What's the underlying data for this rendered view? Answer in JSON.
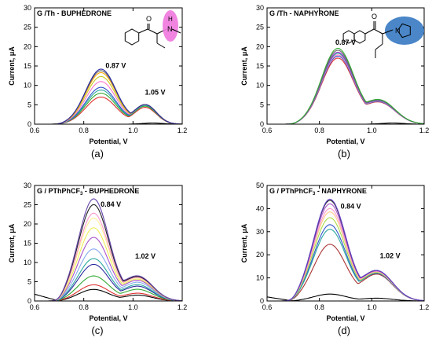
{
  "figure": {
    "panels": [
      {
        "letter": "(a)",
        "title": "G /Th - BUPHEDRONE",
        "title_main": "G /Th - BUPHEDRONE",
        "title_sub": "",
        "title_suffix": "",
        "peak1": "0.87 V",
        "peak2": "1.05 V",
        "xlabel": "Potential, V",
        "ylabel": "Current, μA",
        "molecule": "buphedrone",
        "molecule_labels": [
          "O",
          "H",
          "N"
        ]
      },
      {
        "letter": "(b)",
        "title": "G /Th - NAPHYRONE",
        "title_main": "G /Th - NAPHYRONE",
        "title_sub": "",
        "title_suffix": "",
        "peak1": "0.87 V",
        "peak2": "",
        "xlabel": "Potential, V",
        "ylabel": "Current, μA",
        "molecule": "naphyrone",
        "molecule_labels": [
          "O",
          "N"
        ]
      },
      {
        "letter": "(c)",
        "title": "G / PThPhCF3 - BUPHEDRONE",
        "title_main": "G / PThPhCF",
        "title_sub": "3",
        "title_suffix": " - BUPHEDRONE",
        "peak1": "0.84 V",
        "peak2": "1.02 V",
        "xlabel": "Potential, V",
        "ylabel": "Current, μA",
        "molecule": "",
        "molecule_labels": []
      },
      {
        "letter": "(d)",
        "title": "G / PThPhCF3 - NAPHYRONE",
        "title_main": "G / PThPhCF",
        "title_sub": "3",
        "title_suffix": " - NAPHYRONE",
        "peak1": "0.84 V",
        "peak2": "1.02 V",
        "xlabel": "Potential, V",
        "ylabel": "Current, μA",
        "molecule": "",
        "molecule_labels": []
      }
    ]
  },
  "chart_data": [
    {
      "type": "line",
      "xlabel": "Potential, V",
      "ylabel": "Current, μA",
      "xlim": [
        0.6,
        1.2
      ],
      "ylim": [
        0,
        30
      ],
      "xticks": [
        0.6,
        0.8,
        1.0,
        1.2
      ],
      "yticks": [
        0,
        5,
        10,
        15,
        20,
        25,
        30
      ],
      "grid": false,
      "legend": "none",
      "peaks": [
        {
          "x": 0.87,
          "label": "0.87 V"
        },
        {
          "x": 1.05,
          "label": "1.05 V"
        }
      ],
      "series": [
        {
          "color": "#000000",
          "peak": 0.3,
          "baseline": true
        },
        {
          "color": "#e03030",
          "peak": 7.0,
          "shoulder": 4.3
        },
        {
          "color": "#33aa33",
          "peak": 8.0,
          "shoulder": 4.6
        },
        {
          "color": "#2aa8a0",
          "peak": 8.8,
          "shoulder": 4.8
        },
        {
          "color": "#3355cc",
          "peak": 9.5,
          "shoulder": 5.0
        },
        {
          "color": "#ff77cc",
          "peak": 11.0,
          "shoulder": 5.0
        },
        {
          "color": "#cccc22",
          "peak": 12.3,
          "shoulder": 5.0
        },
        {
          "color": "#ffa500",
          "peak": 13.3,
          "shoulder": 5.0
        },
        {
          "color": "#666666",
          "peak": 13.8,
          "shoulder": 5.0
        },
        {
          "color": "#2a2aa0",
          "peak": 14.2,
          "shoulder": 5.0
        }
      ]
    },
    {
      "type": "line",
      "xlabel": "Potential, V",
      "ylabel": "Current, μA",
      "xlim": [
        0.6,
        1.2
      ],
      "ylim": [
        0,
        30
      ],
      "xticks": [
        0.6,
        0.8,
        1.0,
        1.2
      ],
      "yticks": [
        0,
        5,
        10,
        15,
        20,
        25,
        30
      ],
      "grid": false,
      "legend": "none",
      "peaks": [
        {
          "x": 0.87,
          "label": "0.87 V"
        }
      ],
      "series": [
        {
          "color": "#000000",
          "peak": 0.3,
          "baseline": true
        },
        {
          "color": "#e03030",
          "peak": 17.0,
          "shoulder": 5.5
        },
        {
          "color": "#3355cc",
          "peak": 17.5,
          "shoulder": 5.6
        },
        {
          "color": "#ff77cc",
          "peak": 17.8,
          "shoulder": 5.7
        },
        {
          "color": "#2aa8a0",
          "peak": 18.2,
          "shoulder": 5.8
        },
        {
          "color": "#9933cc",
          "peak": 18.5,
          "shoulder": 5.9
        },
        {
          "color": "#666666",
          "peak": 19.0,
          "shoulder": 6.0
        },
        {
          "color": "#33aa33",
          "peak": 19.5,
          "shoulder": 6.1
        }
      ]
    },
    {
      "type": "line",
      "xlabel": "Potential, V",
      "ylabel": "Current, μA",
      "xlim": [
        0.6,
        1.2
      ],
      "ylim": [
        0,
        30
      ],
      "xticks": [
        0.6,
        0.8,
        1.0,
        1.2
      ],
      "yticks": [
        0,
        5,
        10,
        15,
        20,
        25,
        30
      ],
      "grid": false,
      "legend": "none",
      "peaks": [
        {
          "x": 0.84,
          "label": "0.84 V"
        },
        {
          "x": 1.02,
          "label": "1.02 V"
        }
      ],
      "series": [
        {
          "color": "#000000",
          "peak": 3.0,
          "shoulder": 1.5
        },
        {
          "color": "#e03030",
          "peak": 4.2,
          "shoulder": 2.0
        },
        {
          "color": "#33aa33",
          "peak": 6.5,
          "shoulder": 3.0
        },
        {
          "color": "#2a2aa0",
          "peak": 9.5,
          "shoulder": 3.8
        },
        {
          "color": "#2aa8a0",
          "peak": 11.0,
          "shoulder": 4.2
        },
        {
          "color": "#88aaee",
          "peak": 13.5,
          "shoulder": 4.8
        },
        {
          "color": "#aa55cc",
          "peak": 16.5,
          "shoulder": 5.3
        },
        {
          "color": "#eeee55",
          "peak": 19.0,
          "shoulder": 5.6
        },
        {
          "color": "#ffee99",
          "peak": 21.5,
          "shoulder": 5.9
        },
        {
          "color": "#ff99cc",
          "peak": 22.8,
          "shoulder": 6.0
        },
        {
          "color": "#222222",
          "peak": 25.0,
          "shoulder": 6.2
        },
        {
          "color": "#6644aa",
          "peak": 26.5,
          "shoulder": 6.4
        }
      ]
    },
    {
      "type": "line",
      "xlabel": "Potential, V",
      "ylabel": "Current, μA",
      "xlim": [
        0.6,
        1.2
      ],
      "ylim": [
        0,
        50
      ],
      "xticks": [
        0.6,
        0.8,
        1.0,
        1.2
      ],
      "yticks": [
        0,
        10,
        20,
        30,
        40,
        50
      ],
      "grid": false,
      "legend": "none",
      "peaks": [
        {
          "x": 0.84,
          "label": "0.84 V"
        },
        {
          "x": 1.02,
          "label": "1.02 V"
        }
      ],
      "series": [
        {
          "color": "#000000",
          "peak": 3.0,
          "shoulder": 1.2
        },
        {
          "color": "#aa3333",
          "peak": 24.5,
          "shoulder": 11.5
        },
        {
          "color": "#3355cc",
          "peak": 33.0,
          "shoulder": 11.8
        },
        {
          "color": "#2aa8a0",
          "peak": 31.0,
          "shoulder": 12.0
        },
        {
          "color": "#aadd44",
          "peak": 36.0,
          "shoulder": 12.2
        },
        {
          "color": "#ffcc88",
          "peak": 38.5,
          "shoulder": 12.4
        },
        {
          "color": "#ff99cc",
          "peak": 40.0,
          "shoulder": 12.6
        },
        {
          "color": "#aa55cc",
          "peak": 42.0,
          "shoulder": 12.8
        },
        {
          "color": "#222222",
          "peak": 43.5,
          "shoulder": 13.0
        },
        {
          "color": "#6644cc",
          "peak": 44.0,
          "shoulder": 13.0
        }
      ]
    }
  ]
}
